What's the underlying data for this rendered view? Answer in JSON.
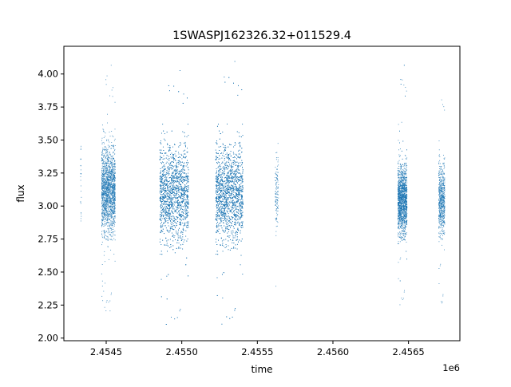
{
  "chart_data": {
    "type": "scatter",
    "title": "1SWASPJ162326.32+011529.4",
    "xlabel": "time",
    "ylabel": "flux",
    "x_offset_label": "1e6",
    "xlim": [
      2454220,
      2456840
    ],
    "ylim": [
      1.98,
      4.21
    ],
    "x_ticks": [
      {
        "value": 2454500,
        "label": "2.4545"
      },
      {
        "value": 2455000,
        "label": "2.4550"
      },
      {
        "value": 2455500,
        "label": "2.4555"
      },
      {
        "value": 2456000,
        "label": "2.4560"
      },
      {
        "value": 2456500,
        "label": "2.4565"
      }
    ],
    "y_ticks": [
      {
        "value": 2.0,
        "label": "2.00"
      },
      {
        "value": 2.25,
        "label": "2.25"
      },
      {
        "value": 2.5,
        "label": "2.50"
      },
      {
        "value": 2.75,
        "label": "2.75"
      },
      {
        "value": 3.0,
        "label": "3.00"
      },
      {
        "value": 3.25,
        "label": "3.25"
      },
      {
        "value": 3.5,
        "label": "3.50"
      },
      {
        "value": 3.75,
        "label": "3.75"
      },
      {
        "value": 4.0,
        "label": "4.00"
      }
    ],
    "grid": false,
    "marker_color": "#1f77b4",
    "series": [
      {
        "observing_seasons": [
          {
            "t_start": 2454330,
            "t_end": 2454336,
            "flux_center": 3.1,
            "flux_spread": 0.22,
            "flux_min": 2.78,
            "flux_max": 3.62,
            "points": 25
          },
          {
            "t_start": 2454470,
            "t_end": 2454560,
            "flux_center": 3.12,
            "flux_spread": 0.16,
            "flux_min": 2.2,
            "flux_max": 4.08,
            "points": 1800
          },
          {
            "t_start": 2454855,
            "t_end": 2455045,
            "flux_center": 3.1,
            "flux_spread": 0.18,
            "flux_min": 2.07,
            "flux_max": 4.04,
            "points": 3400
          },
          {
            "t_start": 2455225,
            "t_end": 2455405,
            "flux_center": 3.1,
            "flux_spread": 0.18,
            "flux_min": 2.07,
            "flux_max": 4.11,
            "points": 3400
          },
          {
            "t_start": 2455618,
            "t_end": 2455640,
            "flux_center": 3.12,
            "flux_spread": 0.14,
            "flux_min": 2.37,
            "flux_max": 3.68,
            "points": 120
          },
          {
            "t_start": 2456430,
            "t_end": 2456490,
            "flux_center": 3.05,
            "flux_spread": 0.13,
            "flux_min": 2.22,
            "flux_max": 4.08,
            "points": 1800
          },
          {
            "t_start": 2456700,
            "t_end": 2456740,
            "flux_center": 3.05,
            "flux_spread": 0.13,
            "flux_min": 2.2,
            "flux_max": 3.92,
            "points": 650
          }
        ]
      }
    ]
  }
}
